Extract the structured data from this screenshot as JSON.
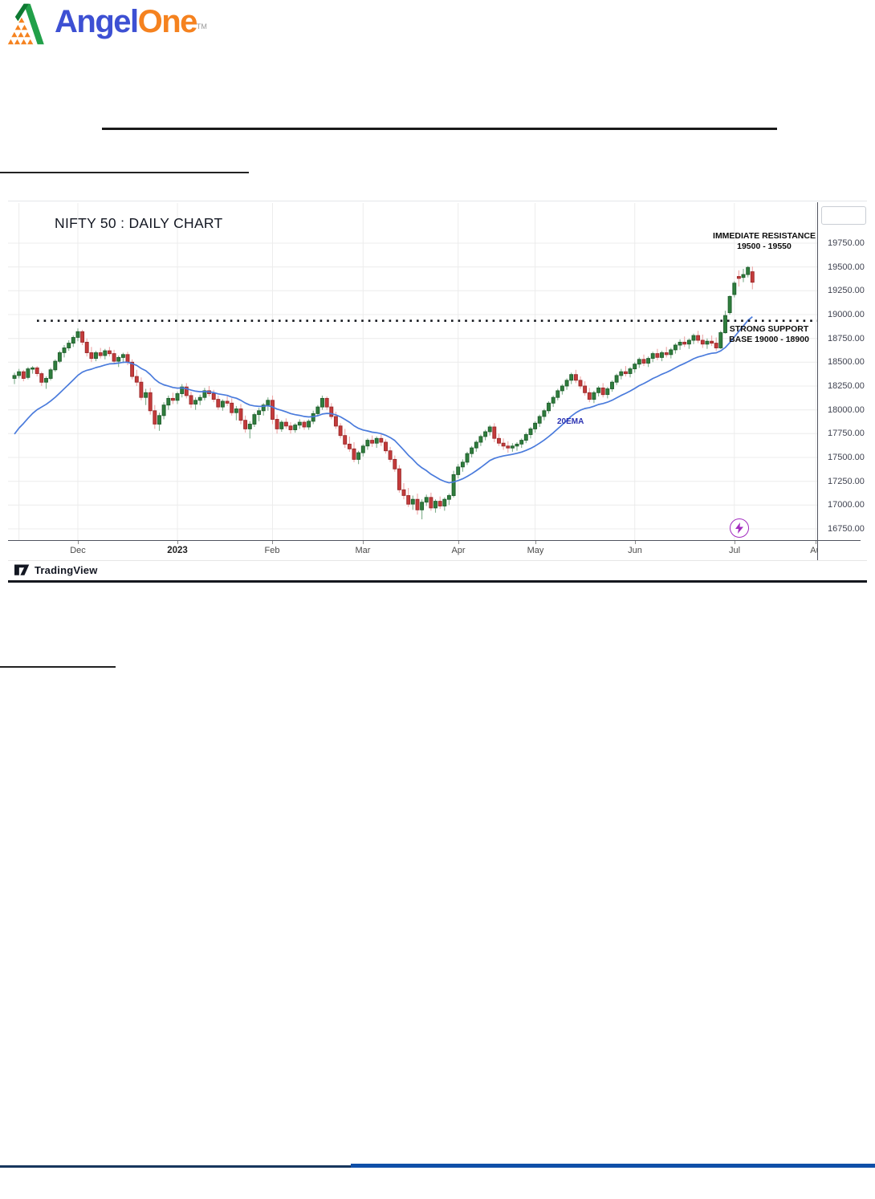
{
  "logo": {
    "brand_part1": "Angel",
    "brand_part2": "One",
    "tm": "TM",
    "part1_color": "#3D50D3",
    "part2_color": "#F5821F",
    "icon_green": "#21A049",
    "icon_dark_green": "#0E7A32",
    "icon_orange": "#F5821F"
  },
  "chart": {
    "title": "NIFTY 50 : DAILY CHART",
    "attribution": "TradingView",
    "labels": {
      "resistance_line1": "IMMEDIATE RESISTANCE",
      "resistance_line2": "19500 - 19550",
      "support_line1": "STRONG SUPPORT",
      "support_line2": "BASE 19000 - 18900",
      "ema": "20EMA"
    },
    "colors": {
      "up": "#2F7D3D",
      "up_border": "#1F5E2C",
      "up_wick": "#7FAE8B",
      "down": "#C43B3B",
      "down_border": "#9A2B2B",
      "down_wick": "#EDA6A6",
      "ema": "#4A7BDC",
      "grid": "#ECECEC",
      "dotted": "#15181E",
      "flash": "#A22BBF"
    }
  },
  "chart_data": {
    "type": "candlestick",
    "title": "NIFTY 50 : DAILY CHART",
    "symbol": "NIFTY 50",
    "timeframe": "Daily",
    "y_ticks": [
      19750,
      19500,
      19250,
      19000,
      18750,
      18500,
      18250,
      18000,
      17750,
      17500,
      17250,
      17000,
      16750
    ],
    "y_top": 20188,
    "y_bottom": 16632,
    "x_months": [
      {
        "label": "Dec",
        "index": 14
      },
      {
        "label": "2023",
        "index": 36,
        "bold": true
      },
      {
        "label": "Feb",
        "index": 57
      },
      {
        "label": "Mar",
        "index": 77
      },
      {
        "label": "Apr",
        "index": 98
      },
      {
        "label": "May",
        "index": 115
      },
      {
        "label": "Jun",
        "index": 137
      },
      {
        "label": "Jul",
        "index": 159
      },
      {
        "label": "Au",
        "index": 177
      }
    ],
    "extra_grid_index": 1,
    "dotted_line_price": 18935,
    "ema_period": 20,
    "ema_seed": 17680,
    "legend_position": "none",
    "grid": true,
    "candles": [
      [
        18330,
        18390,
        18270,
        18360
      ],
      [
        18360,
        18430,
        18330,
        18400
      ],
      [
        18400,
        18420,
        18300,
        18330
      ],
      [
        18340,
        18450,
        18320,
        18430
      ],
      [
        18430,
        18460,
        18380,
        18440
      ],
      [
        18440,
        18460,
        18350,
        18380
      ],
      [
        18380,
        18400,
        18250,
        18290
      ],
      [
        18290,
        18350,
        18220,
        18330
      ],
      [
        18330,
        18440,
        18310,
        18420
      ],
      [
        18420,
        18530,
        18400,
        18510
      ],
      [
        18510,
        18620,
        18490,
        18600
      ],
      [
        18600,
        18680,
        18550,
        18650
      ],
      [
        18650,
        18730,
        18620,
        18700
      ],
      [
        18700,
        18780,
        18660,
        18760
      ],
      [
        18760,
        18855,
        18720,
        18820
      ],
      [
        18820,
        18840,
        18680,
        18710
      ],
      [
        18710,
        18750,
        18560,
        18600
      ],
      [
        18600,
        18660,
        18500,
        18540
      ],
      [
        18540,
        18620,
        18510,
        18600
      ],
      [
        18600,
        18650,
        18540,
        18570
      ],
      [
        18570,
        18640,
        18530,
        18620
      ],
      [
        18620,
        18660,
        18560,
        18590
      ],
      [
        18590,
        18630,
        18480,
        18510
      ],
      [
        18510,
        18570,
        18450,
        18550
      ],
      [
        18550,
        18600,
        18490,
        18580
      ],
      [
        18580,
        18610,
        18470,
        18500
      ],
      [
        18500,
        18530,
        18320,
        18350
      ],
      [
        18350,
        18420,
        18250,
        18290
      ],
      [
        18290,
        18340,
        18100,
        18130
      ],
      [
        18130,
        18220,
        18050,
        18180
      ],
      [
        18180,
        18230,
        17950,
        17990
      ],
      [
        17990,
        18050,
        17800,
        17850
      ],
      [
        17850,
        17970,
        17780,
        17940
      ],
      [
        17940,
        18080,
        17900,
        18050
      ],
      [
        18050,
        18150,
        18000,
        18120
      ],
      [
        18120,
        18180,
        18060,
        18100
      ],
      [
        18100,
        18190,
        18060,
        18170
      ],
      [
        18170,
        18270,
        18130,
        18240
      ],
      [
        18240,
        18280,
        18120,
        18150
      ],
      [
        18150,
        18190,
        18020,
        18060
      ],
      [
        18060,
        18130,
        18000,
        18100
      ],
      [
        18100,
        18160,
        18050,
        18130
      ],
      [
        18130,
        18230,
        18100,
        18200
      ],
      [
        18200,
        18250,
        18140,
        18170
      ],
      [
        18170,
        18210,
        18080,
        18110
      ],
      [
        18110,
        18150,
        18000,
        18030
      ],
      [
        18030,
        18110,
        17990,
        18090
      ],
      [
        18090,
        18140,
        18040,
        18070
      ],
      [
        18070,
        18120,
        17940,
        17970
      ],
      [
        17970,
        18040,
        17890,
        18010
      ],
      [
        18010,
        18060,
        17850,
        17890
      ],
      [
        17890,
        17940,
        17760,
        17800
      ],
      [
        17800,
        17880,
        17700,
        17850
      ],
      [
        17850,
        17970,
        17820,
        17950
      ],
      [
        17950,
        18020,
        17880,
        17990
      ],
      [
        17990,
        18070,
        17940,
        18050
      ],
      [
        18050,
        18130,
        17990,
        18100
      ],
      [
        18100,
        18150,
        17850,
        17900
      ],
      [
        17900,
        17950,
        17750,
        17800
      ],
      [
        17800,
        17890,
        17770,
        17870
      ],
      [
        17870,
        17910,
        17800,
        17830
      ],
      [
        17830,
        17870,
        17750,
        17790
      ],
      [
        17790,
        17860,
        17760,
        17840
      ],
      [
        17840,
        17900,
        17800,
        17870
      ],
      [
        17870,
        17890,
        17790,
        17820
      ],
      [
        17820,
        17900,
        17790,
        17880
      ],
      [
        17880,
        17990,
        17850,
        17960
      ],
      [
        17960,
        18050,
        17930,
        18030
      ],
      [
        18030,
        18150,
        18000,
        18120
      ],
      [
        18120,
        18140,
        18000,
        18030
      ],
      [
        18030,
        18070,
        17900,
        17930
      ],
      [
        17930,
        17980,
        17800,
        17830
      ],
      [
        17830,
        17860,
        17700,
        17730
      ],
      [
        17730,
        17800,
        17600,
        17640
      ],
      [
        17640,
        17720,
        17560,
        17590
      ],
      [
        17590,
        17660,
        17450,
        17480
      ],
      [
        17480,
        17570,
        17430,
        17550
      ],
      [
        17550,
        17640,
        17510,
        17620
      ],
      [
        17620,
        17700,
        17580,
        17680
      ],
      [
        17680,
        17730,
        17610,
        17650
      ],
      [
        17650,
        17720,
        17600,
        17700
      ],
      [
        17700,
        17750,
        17620,
        17660
      ],
      [
        17660,
        17690,
        17540,
        17570
      ],
      [
        17570,
        17610,
        17450,
        17480
      ],
      [
        17480,
        17520,
        17350,
        17380
      ],
      [
        17380,
        17420,
        17130,
        17160
      ],
      [
        17160,
        17230,
        17060,
        17100
      ],
      [
        17100,
        17180,
        16980,
        17010
      ],
      [
        17010,
        17100,
        16950,
        17060
      ],
      [
        17060,
        17120,
        16900,
        16950
      ],
      [
        16950,
        17060,
        16850,
        17030
      ],
      [
        17030,
        17110,
        16990,
        17080
      ],
      [
        17080,
        17130,
        16940,
        16970
      ],
      [
        16970,
        17060,
        16920,
        17040
      ],
      [
        17040,
        17090,
        16960,
        16990
      ],
      [
        16990,
        17080,
        16940,
        17060
      ],
      [
        17060,
        17120,
        17000,
        17100
      ],
      [
        17100,
        17360,
        17080,
        17320
      ],
      [
        17320,
        17430,
        17280,
        17400
      ],
      [
        17400,
        17480,
        17350,
        17450
      ],
      [
        17450,
        17560,
        17420,
        17540
      ],
      [
        17540,
        17620,
        17500,
        17600
      ],
      [
        17600,
        17680,
        17560,
        17660
      ],
      [
        17660,
        17740,
        17620,
        17720
      ],
      [
        17720,
        17790,
        17680,
        17770
      ],
      [
        17770,
        17840,
        17730,
        17820
      ],
      [
        17820,
        17860,
        17660,
        17700
      ],
      [
        17700,
        17750,
        17620,
        17650
      ],
      [
        17650,
        17700,
        17580,
        17620
      ],
      [
        17620,
        17670,
        17550,
        17600
      ],
      [
        17600,
        17650,
        17560,
        17620
      ],
      [
        17620,
        17660,
        17570,
        17640
      ],
      [
        17640,
        17700,
        17600,
        17680
      ],
      [
        17680,
        17760,
        17650,
        17740
      ],
      [
        17740,
        17820,
        17700,
        17800
      ],
      [
        17800,
        17880,
        17760,
        17860
      ],
      [
        17860,
        17950,
        17820,
        17930
      ],
      [
        17930,
        18010,
        17890,
        17990
      ],
      [
        17990,
        18090,
        17960,
        18070
      ],
      [
        18070,
        18150,
        18030,
        18130
      ],
      [
        18130,
        18220,
        18100,
        18200
      ],
      [
        18200,
        18270,
        18160,
        18250
      ],
      [
        18250,
        18330,
        18210,
        18310
      ],
      [
        18310,
        18390,
        18270,
        18370
      ],
      [
        18370,
        18420,
        18280,
        18310
      ],
      [
        18310,
        18350,
        18220,
        18250
      ],
      [
        18250,
        18300,
        18150,
        18180
      ],
      [
        18180,
        18230,
        18080,
        18110
      ],
      [
        18110,
        18200,
        18070,
        18180
      ],
      [
        18180,
        18250,
        18140,
        18230
      ],
      [
        18230,
        18280,
        18130,
        18160
      ],
      [
        18160,
        18240,
        18120,
        18220
      ],
      [
        18220,
        18310,
        18190,
        18290
      ],
      [
        18290,
        18380,
        18260,
        18360
      ],
      [
        18360,
        18430,
        18320,
        18400
      ],
      [
        18400,
        18460,
        18350,
        18380
      ],
      [
        18380,
        18450,
        18340,
        18430
      ],
      [
        18430,
        18500,
        18390,
        18480
      ],
      [
        18480,
        18550,
        18440,
        18530
      ],
      [
        18530,
        18580,
        18460,
        18490
      ],
      [
        18490,
        18560,
        18450,
        18540
      ],
      [
        18540,
        18610,
        18500,
        18590
      ],
      [
        18590,
        18640,
        18520,
        18550
      ],
      [
        18550,
        18620,
        18510,
        18600
      ],
      [
        18600,
        18660,
        18550,
        18580
      ],
      [
        18580,
        18650,
        18540,
        18630
      ],
      [
        18630,
        18700,
        18590,
        18680
      ],
      [
        18680,
        18740,
        18630,
        18710
      ],
      [
        18710,
        18770,
        18660,
        18690
      ],
      [
        18690,
        18750,
        18640,
        18730
      ],
      [
        18730,
        18800,
        18690,
        18780
      ],
      [
        18780,
        18830,
        18700,
        18730
      ],
      [
        18730,
        18790,
        18650,
        18690
      ],
      [
        18690,
        18750,
        18640,
        18720
      ],
      [
        18720,
        18780,
        18670,
        18700
      ],
      [
        18700,
        18760,
        18620,
        18650
      ],
      [
        18650,
        18830,
        18640,
        18810
      ],
      [
        18810,
        19040,
        18800,
        18990
      ],
      [
        19020,
        19200,
        19000,
        19190
      ],
      [
        19210,
        19350,
        19180,
        19330
      ],
      [
        19400,
        19465,
        19295,
        19380
      ],
      [
        19390,
        19480,
        19340,
        19420
      ],
      [
        19420,
        19510,
        19390,
        19495
      ],
      [
        19450,
        19505,
        19265,
        19340
      ]
    ]
  }
}
